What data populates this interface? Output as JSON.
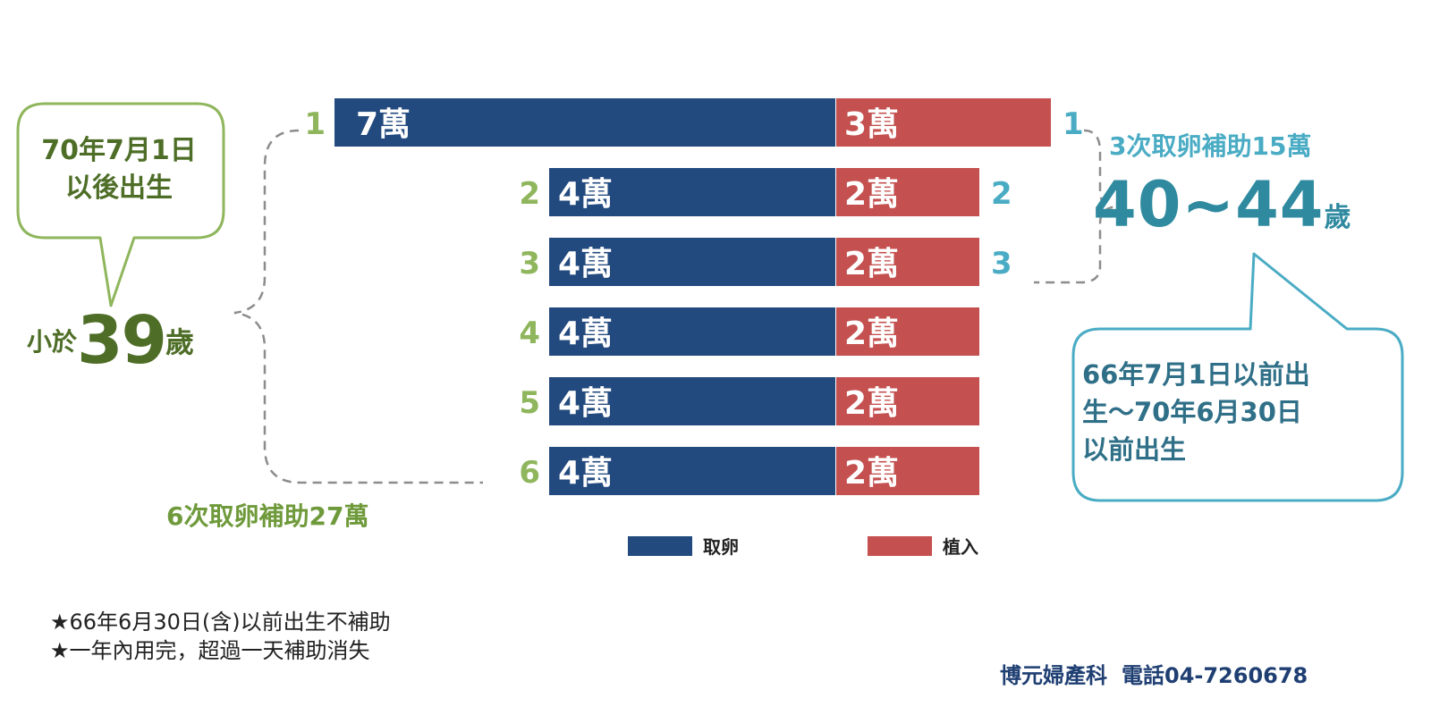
{
  "chart_data": {
    "type": "bar",
    "orientation": "horizontal-stacked",
    "categories": [
      "1",
      "2",
      "3",
      "4",
      "5",
      "6"
    ],
    "series": [
      {
        "name": "取卵",
        "values": [
          7,
          4,
          4,
          4,
          4,
          4
        ],
        "labels": [
          "7萬",
          "4萬",
          "4萬",
          "4萬",
          "4萬",
          "4萬"
        ]
      },
      {
        "name": "植入",
        "values": [
          3,
          2,
          2,
          2,
          2,
          2
        ],
        "labels": [
          "3萬",
          "2萬",
          "2萬",
          "2萬",
          "2萬",
          "2萬"
        ]
      }
    ],
    "unit": "萬",
    "legend": [
      "取卵",
      "植入"
    ],
    "legend_position": "bottom"
  },
  "colors": {
    "retrieval": "#234a7e",
    "transfer": "#c4504f",
    "green_dark": "#4e6e27",
    "green": "#6f9a3b",
    "green_light": "#8fb65c",
    "teal": "#2f8aa0",
    "teal_light": "#4aacc4",
    "dash": "#8c8c8c",
    "footer": "#1f3f73"
  },
  "left_group": {
    "bubble_text": "70年7月1日\n以後出生",
    "prefix": "小於",
    "age": "39",
    "suffix": "歲",
    "summary": "6次取卵補助27萬",
    "index_labels": [
      "1",
      "2",
      "3",
      "4",
      "5",
      "6"
    ]
  },
  "right_group": {
    "summary": "3次取卵補助15萬",
    "age": "40~44",
    "suffix": "歲",
    "bubble_text": "66年7月1日以前出\n生～70年6月30日\n以前出生",
    "index_labels": [
      "1",
      "2",
      "3"
    ]
  },
  "notes": [
    "★66年6月30日(含)以前出生不補助",
    "★一年內用完，超過一天補助消失"
  ],
  "footer": {
    "clinic": "博元婦產科",
    "phone": "電話04-7260678"
  }
}
